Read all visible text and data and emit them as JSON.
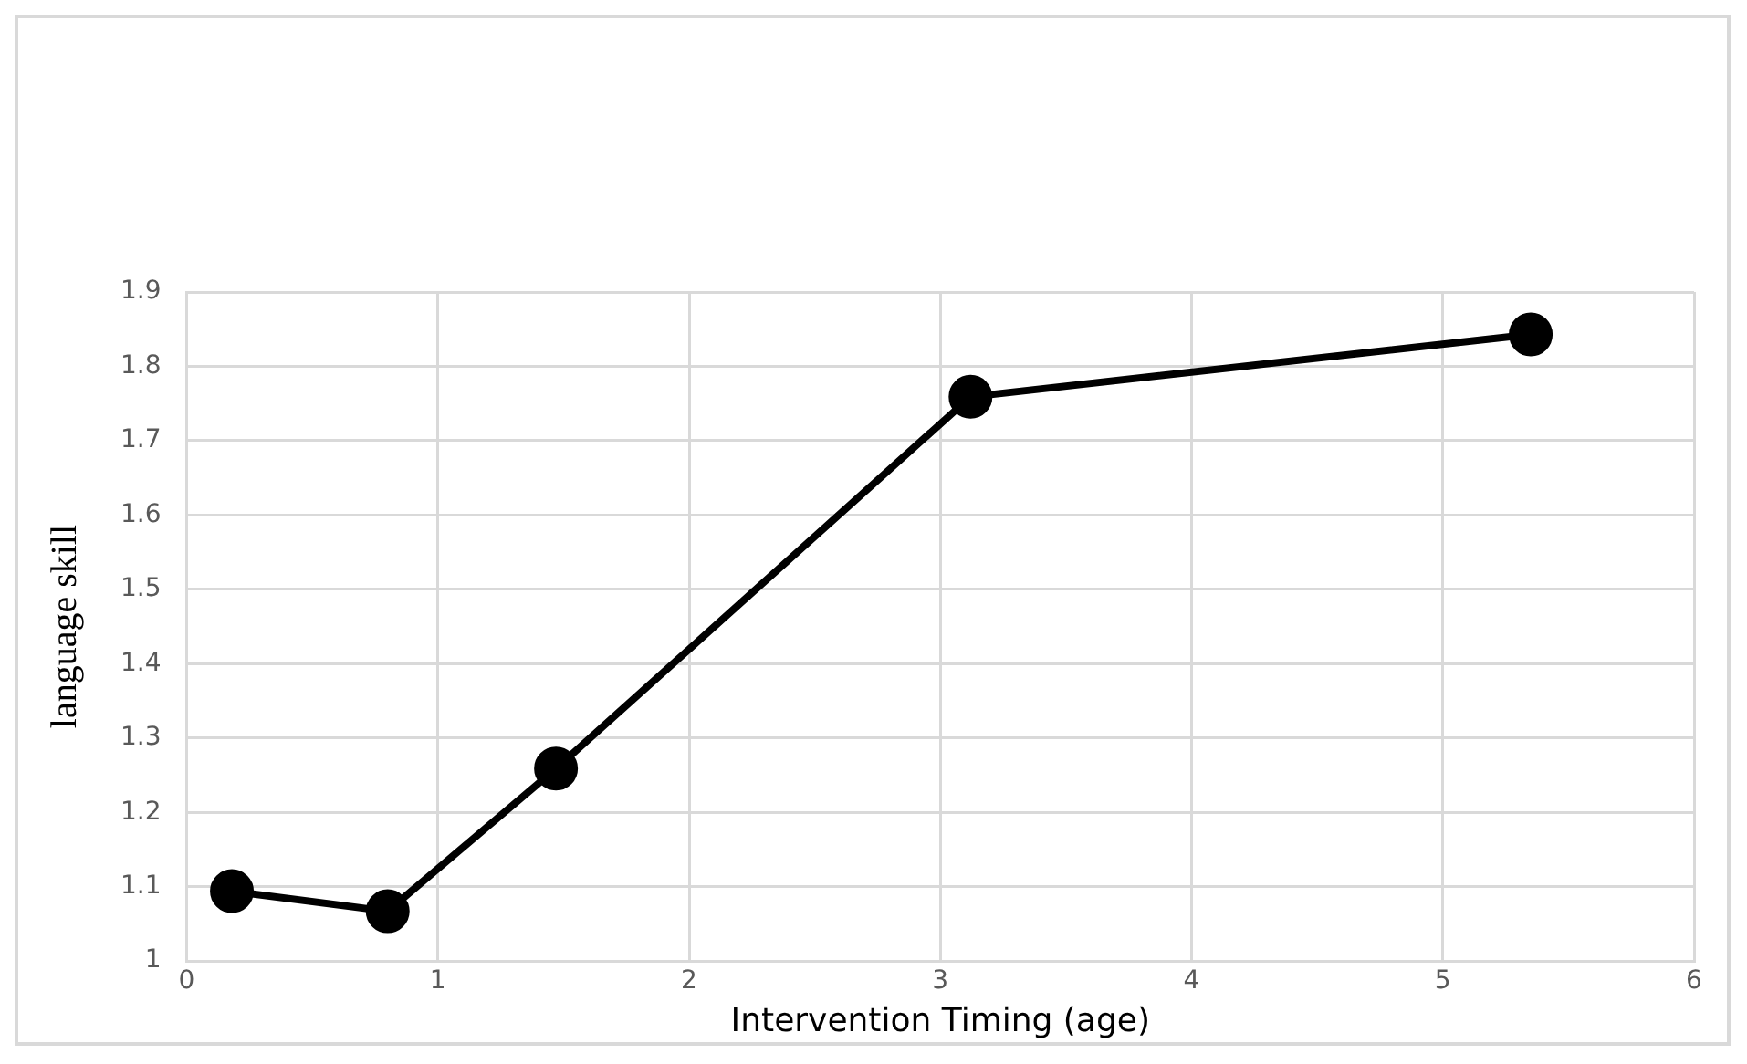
{
  "chart_data": {
    "type": "line",
    "xlabel": "Intervention Timing (age)",
    "ylabel": "language skill",
    "x": [
      0.18,
      0.8,
      1.47,
      3.12,
      5.35
    ],
    "series": [
      {
        "color": "#000000",
        "values": [
          1.094,
          1.067,
          1.259,
          1.759,
          1.843
        ]
      }
    ],
    "xlim": [
      0,
      6
    ],
    "xticks": [
      0,
      1,
      2,
      3,
      4,
      5,
      6
    ],
    "ylim": [
      1,
      1.9
    ],
    "yticks": [
      1,
      1.1,
      1.2,
      1.3,
      1.4,
      1.5,
      1.6,
      1.7,
      1.8,
      1.9
    ],
    "grid": true,
    "legend": false,
    "marker": "circle",
    "line_style": "solid"
  }
}
